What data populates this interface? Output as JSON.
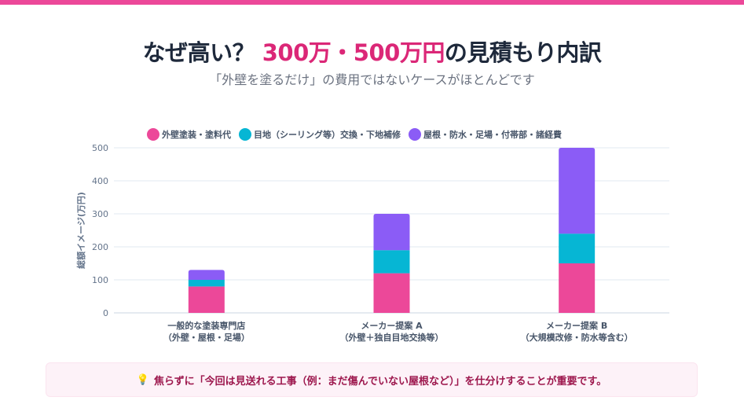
{
  "header": {
    "title_prefix": "なぜ高い？ ",
    "title_highlight": "300万・500万円",
    "title_suffix": "の見積もり内訳",
    "subtitle": "「外壁を塗るだけ」の費用ではないケースがほとんどです"
  },
  "colors": {
    "accent": "#ec4899",
    "series": [
      "#ec4899",
      "#06b6d4",
      "#8b5cf6"
    ]
  },
  "chart_data": {
    "type": "bar",
    "stacked": true,
    "categories": [
      [
        "一般的な塗装専門店",
        "（外壁・屋根・足場）"
      ],
      [
        "メーカー提案 A",
        "（外壁＋独自目地交換等）"
      ],
      [
        "メーカー提案 B",
        "（大規模改修・防水等含む）"
      ]
    ],
    "series": [
      {
        "name": "外壁塗装・塗料代",
        "values": [
          80,
          120,
          150
        ]
      },
      {
        "name": "目地（シーリング等）交換・下地補修",
        "values": [
          20,
          70,
          90
        ]
      },
      {
        "name": "屋根・防水・足場・付帯部・諸経費",
        "values": [
          30,
          110,
          260
        ]
      }
    ],
    "ylabel": "総額イメージ(万円)",
    "ylim": [
      0,
      500
    ],
    "yticks": [
      0,
      100,
      200,
      300,
      400,
      500
    ],
    "grid": true,
    "legend": "top"
  },
  "note": {
    "icon": "lightbulb-icon",
    "text": "焦らずに「今回は見送れる工事（例：まだ傷んでいない屋根など）」を仕分けすることが重要です。"
  }
}
